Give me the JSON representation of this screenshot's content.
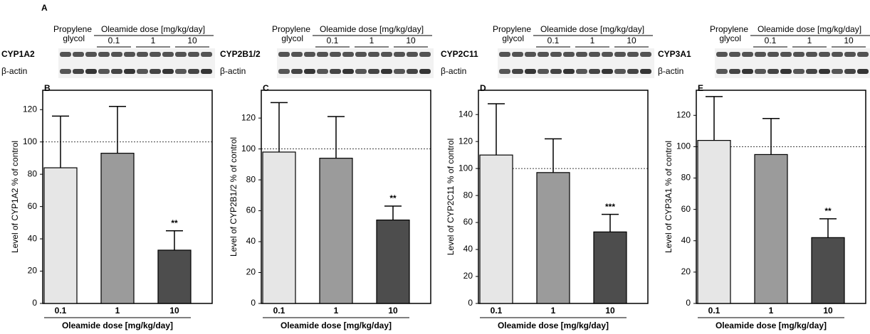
{
  "blots": {
    "panel": "A",
    "items": [
      {
        "header": "Propylene glycol",
        "dose_title": "Oleamide dose [mg/kg/day]",
        "doses": [
          "0.1",
          "1",
          "10"
        ],
        "protein": "CYP1A2",
        "control": "β-actin"
      },
      {
        "header": "Propylene glycol",
        "dose_title": "Oleamide dose [mg/kg/day]",
        "doses": [
          "0.1",
          "1",
          "10"
        ],
        "protein": "CYP2B1/2",
        "control": "β-actin"
      },
      {
        "header": "Propylene glycol",
        "dose_title": "Oleamide dose [mg/kg/day]",
        "doses": [
          "0.1",
          "1",
          "10"
        ],
        "protein": "CYP2C11",
        "control": "β-actin"
      },
      {
        "header": "Propylene glycol",
        "dose_title": "Oleamide dose [mg/kg/day]",
        "doses": [
          "0.1",
          "1",
          "10"
        ],
        "protein": "CYP3A1",
        "control": "β-actin"
      }
    ]
  },
  "chart_data": [
    {
      "type": "bar",
      "panel": "B",
      "ylabel": "Level of CYP1A2 % of control",
      "xlabel": "Oleamide dose [mg/kg/day]",
      "categories": [
        "0.1",
        "1",
        "10"
      ],
      "values": [
        84,
        93,
        33
      ],
      "errors": [
        32,
        29,
        12
      ],
      "significance": [
        null,
        null,
        "**"
      ],
      "colors": [
        "#e6e6e6",
        "#9b9b9b",
        "#4d4d4d"
      ],
      "reference_line": 100,
      "ylim": [
        0,
        132
      ],
      "yticks": [
        0,
        20,
        40,
        60,
        80,
        100,
        120
      ]
    },
    {
      "type": "bar",
      "panel": "C",
      "ylabel": "Level of CYP2B1/2 % of control",
      "xlabel": "Oleamide dose [mg/kg/day]",
      "categories": [
        "0.1",
        "1",
        "10"
      ],
      "values": [
        98,
        94,
        54
      ],
      "errors": [
        32,
        27,
        9
      ],
      "significance": [
        null,
        null,
        "**"
      ],
      "colors": [
        "#e6e6e6",
        "#9b9b9b",
        "#4d4d4d"
      ],
      "reference_line": 100,
      "ylim": [
        0,
        138
      ],
      "yticks": [
        0,
        20,
        40,
        60,
        80,
        100,
        120
      ]
    },
    {
      "type": "bar",
      "panel": "D",
      "ylabel": "Level of CYP2C11 % of control",
      "xlabel": "Oleamide dose [mg/kg/day]",
      "categories": [
        "0.1",
        "1",
        "10"
      ],
      "values": [
        110,
        97,
        53
      ],
      "errors": [
        38,
        25,
        13
      ],
      "significance": [
        null,
        null,
        "***"
      ],
      "colors": [
        "#e6e6e6",
        "#9b9b9b",
        "#4d4d4d"
      ],
      "reference_line": 100,
      "ylim": [
        0,
        158
      ],
      "yticks": [
        0,
        20,
        40,
        60,
        80,
        100,
        120,
        140
      ]
    },
    {
      "type": "bar",
      "panel": "E",
      "ylabel": "Level of CYP3A1 % of control",
      "xlabel": "Oleamide dose [mg/kg/day]",
      "categories": [
        "0.1",
        "1",
        "10"
      ],
      "values": [
        104,
        95,
        42
      ],
      "errors": [
        28,
        23,
        12
      ],
      "significance": [
        null,
        null,
        "**"
      ],
      "colors": [
        "#e6e6e6",
        "#9b9b9b",
        "#4d4d4d"
      ],
      "reference_line": 100,
      "ylim": [
        0,
        136
      ],
      "yticks": [
        0,
        20,
        40,
        60,
        80,
        100,
        120
      ]
    }
  ]
}
